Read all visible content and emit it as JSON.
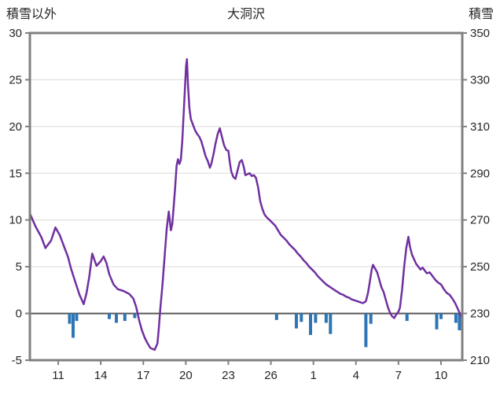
{
  "chart_data": {
    "type": "line",
    "title": "大洞沢",
    "left_axis_label": "積雪以外",
    "right_axis_label": "積雪",
    "x_domain": [
      0,
      30.5
    ],
    "y_left": {
      "min": -5,
      "max": 30,
      "ticks": [
        30,
        25,
        20,
        15,
        10,
        5,
        0,
        -5
      ]
    },
    "y_right": {
      "min": 210,
      "max": 350,
      "ticks": [
        350,
        330,
        310,
        290,
        270,
        250,
        230,
        210
      ]
    },
    "x_ticks": [
      {
        "t": 2,
        "label": "11"
      },
      {
        "t": 5,
        "label": "14"
      },
      {
        "t": 8,
        "label": "17"
      },
      {
        "t": 11,
        "label": "20"
      },
      {
        "t": 14,
        "label": "23"
      },
      {
        "t": 17,
        "label": "26"
      },
      {
        "t": 20,
        "label": "1"
      },
      {
        "t": 23,
        "label": "4"
      },
      {
        "t": 26,
        "label": "7"
      },
      {
        "t": 29,
        "label": "10"
      }
    ],
    "colors": {
      "line": "#7030A0",
      "bar": "#2E75B6",
      "frame": "#808080",
      "grid": "#D9D9D9",
      "zero_line": "#595959",
      "text": "#262626"
    },
    "grid": "horizontal-only",
    "legend": "none",
    "series": [
      {
        "name": "purple-line",
        "type": "line",
        "points": [
          [
            0,
            10.7
          ],
          [
            0.4,
            9.3
          ],
          [
            0.8,
            8.2
          ],
          [
            1.1,
            7.0
          ],
          [
            1.5,
            7.8
          ],
          [
            1.8,
            9.2
          ],
          [
            2.1,
            8.4
          ],
          [
            2.4,
            7.2
          ],
          [
            2.7,
            6.0
          ],
          [
            2.9,
            4.8
          ],
          [
            3.2,
            3.4
          ],
          [
            3.5,
            2.0
          ],
          [
            3.8,
            1.0
          ],
          [
            4.0,
            2.2
          ],
          [
            4.2,
            4.0
          ],
          [
            4.4,
            6.4
          ],
          [
            4.7,
            5.1
          ],
          [
            5.0,
            5.6
          ],
          [
            5.2,
            6.1
          ],
          [
            5.4,
            5.4
          ],
          [
            5.6,
            4.2
          ],
          [
            5.9,
            3.1
          ],
          [
            6.2,
            2.6
          ],
          [
            6.6,
            2.4
          ],
          [
            7.0,
            2.1
          ],
          [
            7.3,
            1.6
          ],
          [
            7.5,
            0.7
          ],
          [
            7.7,
            -0.7
          ],
          [
            7.9,
            -1.8
          ],
          [
            8.1,
            -2.6
          ],
          [
            8.3,
            -3.2
          ],
          [
            8.5,
            -3.7
          ],
          [
            8.8,
            -3.9
          ],
          [
            9.0,
            -3.2
          ],
          [
            9.1,
            -1.5
          ],
          [
            9.2,
            0.5
          ],
          [
            9.35,
            3.0
          ],
          [
            9.5,
            6.0
          ],
          [
            9.65,
            9.0
          ],
          [
            9.8,
            10.9
          ],
          [
            9.95,
            8.9
          ],
          [
            10.05,
            9.6
          ],
          [
            10.15,
            11.5
          ],
          [
            10.25,
            13.5
          ],
          [
            10.35,
            15.8
          ],
          [
            10.45,
            16.5
          ],
          [
            10.55,
            16.0
          ],
          [
            10.65,
            16.4
          ],
          [
            10.75,
            18.5
          ],
          [
            10.85,
            21.5
          ],
          [
            10.95,
            24.5
          ],
          [
            11.02,
            26.5
          ],
          [
            11.08,
            27.2
          ],
          [
            11.15,
            24.5
          ],
          [
            11.25,
            22.0
          ],
          [
            11.35,
            20.8
          ],
          [
            11.5,
            20.2
          ],
          [
            11.65,
            19.6
          ],
          [
            11.8,
            19.2
          ],
          [
            11.95,
            18.9
          ],
          [
            12.1,
            18.4
          ],
          [
            12.25,
            17.6
          ],
          [
            12.4,
            16.8
          ],
          [
            12.55,
            16.3
          ],
          [
            12.7,
            15.6
          ],
          [
            12.8,
            16.0
          ],
          [
            12.95,
            17.0
          ],
          [
            13.1,
            18.2
          ],
          [
            13.25,
            19.2
          ],
          [
            13.4,
            19.8
          ],
          [
            13.55,
            18.9
          ],
          [
            13.7,
            18.0
          ],
          [
            13.85,
            17.5
          ],
          [
            14.0,
            17.4
          ],
          [
            14.1,
            16.2
          ],
          [
            14.2,
            15.2
          ],
          [
            14.35,
            14.6
          ],
          [
            14.5,
            14.4
          ],
          [
            14.65,
            15.3
          ],
          [
            14.8,
            16.2
          ],
          [
            14.95,
            16.4
          ],
          [
            15.1,
            15.6
          ],
          [
            15.2,
            14.8
          ],
          [
            15.35,
            14.9
          ],
          [
            15.5,
            15.0
          ],
          [
            15.65,
            14.7
          ],
          [
            15.8,
            14.8
          ],
          [
            15.95,
            14.5
          ],
          [
            16.1,
            13.5
          ],
          [
            16.25,
            12.0
          ],
          [
            16.4,
            11.2
          ],
          [
            16.55,
            10.6
          ],
          [
            16.7,
            10.3
          ],
          [
            16.9,
            10.0
          ],
          [
            17.1,
            9.7
          ],
          [
            17.3,
            9.4
          ],
          [
            17.5,
            8.9
          ],
          [
            17.7,
            8.4
          ],
          [
            17.9,
            8.1
          ],
          [
            18.1,
            7.8
          ],
          [
            18.3,
            7.4
          ],
          [
            18.5,
            7.1
          ],
          [
            18.7,
            6.8
          ],
          [
            18.9,
            6.4
          ],
          [
            19.1,
            6.1
          ],
          [
            19.3,
            5.7
          ],
          [
            19.5,
            5.4
          ],
          [
            19.7,
            5.0
          ],
          [
            19.9,
            4.7
          ],
          [
            20.1,
            4.4
          ],
          [
            20.3,
            4.0
          ],
          [
            20.5,
            3.7
          ],
          [
            20.7,
            3.4
          ],
          [
            20.9,
            3.1
          ],
          [
            21.1,
            2.9
          ],
          [
            21.3,
            2.7
          ],
          [
            21.5,
            2.5
          ],
          [
            21.7,
            2.3
          ],
          [
            21.9,
            2.1
          ],
          [
            22.1,
            2.0
          ],
          [
            22.3,
            1.8
          ],
          [
            22.5,
            1.7
          ],
          [
            22.7,
            1.5
          ],
          [
            22.9,
            1.4
          ],
          [
            23.1,
            1.3
          ],
          [
            23.3,
            1.2
          ],
          [
            23.5,
            1.1
          ],
          [
            23.7,
            1.3
          ],
          [
            23.85,
            2.2
          ],
          [
            24.0,
            3.6
          ],
          [
            24.1,
            4.6
          ],
          [
            24.2,
            5.2
          ],
          [
            24.35,
            4.8
          ],
          [
            24.5,
            4.4
          ],
          [
            24.65,
            3.6
          ],
          [
            24.8,
            2.8
          ],
          [
            24.95,
            2.3
          ],
          [
            25.1,
            1.5
          ],
          [
            25.25,
            0.7
          ],
          [
            25.4,
            0.1
          ],
          [
            25.55,
            -0.3
          ],
          [
            25.7,
            -0.5
          ],
          [
            25.85,
            -0.1
          ],
          [
            26.0,
            0.2
          ],
          [
            26.1,
            0.6
          ],
          [
            26.25,
            2.5
          ],
          [
            26.4,
            5.0
          ],
          [
            26.55,
            7.0
          ],
          [
            26.7,
            8.2
          ],
          [
            26.8,
            7.2
          ],
          [
            26.95,
            6.3
          ],
          [
            27.1,
            5.8
          ],
          [
            27.25,
            5.3
          ],
          [
            27.4,
            5.0
          ],
          [
            27.55,
            4.7
          ],
          [
            27.7,
            4.9
          ],
          [
            27.85,
            4.6
          ],
          [
            28.0,
            4.3
          ],
          [
            28.2,
            4.4
          ],
          [
            28.4,
            4.0
          ],
          [
            28.6,
            3.6
          ],
          [
            28.8,
            3.3
          ],
          [
            29.0,
            3.1
          ],
          [
            29.2,
            2.6
          ],
          [
            29.4,
            2.2
          ],
          [
            29.6,
            2.0
          ],
          [
            29.8,
            1.6
          ],
          [
            30.0,
            1.1
          ],
          [
            30.15,
            0.6
          ],
          [
            30.3,
            0.1
          ],
          [
            30.45,
            -0.4
          ]
        ]
      },
      {
        "name": "blue-bars",
        "type": "bar",
        "points": [
          [
            2.8,
            -1.1
          ],
          [
            3.05,
            -2.6
          ],
          [
            3.3,
            -0.8
          ],
          [
            5.6,
            -0.6
          ],
          [
            6.1,
            -1.0
          ],
          [
            6.7,
            -0.8
          ],
          [
            7.4,
            -0.5
          ],
          [
            17.4,
            -0.7
          ],
          [
            18.8,
            -1.6
          ],
          [
            19.15,
            -0.9
          ],
          [
            19.8,
            -2.3
          ],
          [
            20.15,
            -1.0
          ],
          [
            20.9,
            -1.0
          ],
          [
            21.2,
            -2.2
          ],
          [
            23.7,
            -3.6
          ],
          [
            24.05,
            -1.1
          ],
          [
            26.6,
            -0.8
          ],
          [
            28.7,
            -1.7
          ],
          [
            29.0,
            -0.6
          ],
          [
            30.05,
            -1.0
          ],
          [
            30.3,
            -1.8
          ]
        ]
      }
    ]
  }
}
